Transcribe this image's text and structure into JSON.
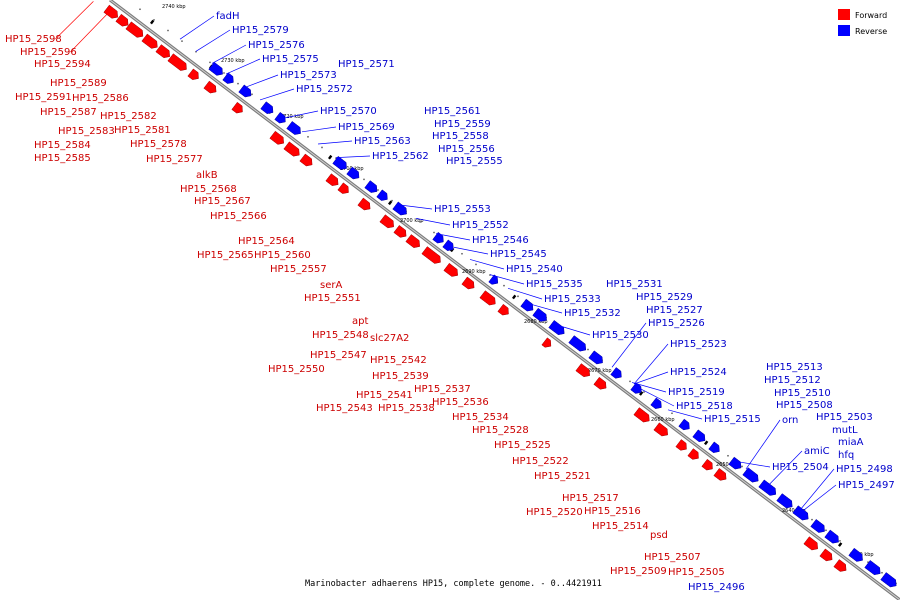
{
  "caption": "Marinobacter adhaerens HP15, complete genome. - 0..4421911",
  "legend": [
    {
      "label": "Forward",
      "color": "#ff0000"
    },
    {
      "label": "Reverse",
      "color": "#0000ff"
    }
  ],
  "colors": {
    "forward": "#ff0000",
    "reverse": "#0000ff",
    "backbone": "#808080",
    "forward_text": "#cc0000",
    "reverse_text": "#0000cc"
  },
  "ticks": [
    "2740 kbp",
    "2730 kbp",
    "2720 kbp",
    "2710 kbp",
    "2700 kbp",
    "2690 kbp",
    "2680 kbp",
    "2670 kbp",
    "2660 kbp",
    "2650 kbp",
    "2640 kbp",
    "2630 kbp"
  ],
  "forward_genes": [
    "HP15_2598",
    "HP15_2596",
    "HP15_2594",
    "HP15_2589",
    "HP15_2591",
    "HP15_2586",
    "HP15_2587",
    "HP15_2582",
    "HP15_2583",
    "HP15_2581",
    "HP15_2584",
    "HP15_2578",
    "HP15_2585",
    "HP15_2577",
    "alkB",
    "HP15_2568",
    "HP15_2567",
    "HP15_2566",
    "HP15_2564",
    "HP15_2565",
    "HP15_2560",
    "HP15_2557",
    "serA",
    "HP15_2551",
    "apt",
    "HP15_2548",
    "slc27A2",
    "HP15_2547",
    "HP15_2542",
    "HP15_2550",
    "HP15_2539",
    "HP15_2541",
    "HP15_2537",
    "HP15_2543",
    "HP15_2538",
    "HP15_2536",
    "HP15_2534",
    "HP15_2528",
    "HP15_2525",
    "HP15_2522",
    "HP15_2521",
    "HP15_2517",
    "HP15_2520",
    "HP15_2516",
    "HP15_2514",
    "psd",
    "HP15_2507",
    "HP15_2509",
    "HP15_2505"
  ],
  "reverse_genes": [
    "fadH",
    "HP15_2579",
    "HP15_2576",
    "HP15_2575",
    "HP15_2573",
    "HP15_2571",
    "HP15_2572",
    "HP15_2570",
    "HP15_2561",
    "HP15_2569",
    "HP15_2559",
    "HP15_2563",
    "HP15_2558",
    "HP15_2562",
    "HP15_2556",
    "HP15_2555",
    "HP15_2553",
    "HP15_2552",
    "HP15_2546",
    "HP15_2545",
    "HP15_2540",
    "HP15_2535",
    "HP15_2531",
    "HP15_2533",
    "HP15_2529",
    "HP15_2532",
    "HP15_2527",
    "HP15_2526",
    "HP15_2530",
    "HP15_2523",
    "HP15_2524",
    "HP15_2519",
    "HP15_2518",
    "HP15_2515",
    "HP15_2513",
    "HP15_2512",
    "HP15_2510",
    "HP15_2508",
    "orn",
    "HP15_2503",
    "mutL",
    "amiC",
    "miaA",
    "hfq",
    "HP15_2504",
    "HP15_2498",
    "HP15_2497",
    "HP15_2496"
  ]
}
